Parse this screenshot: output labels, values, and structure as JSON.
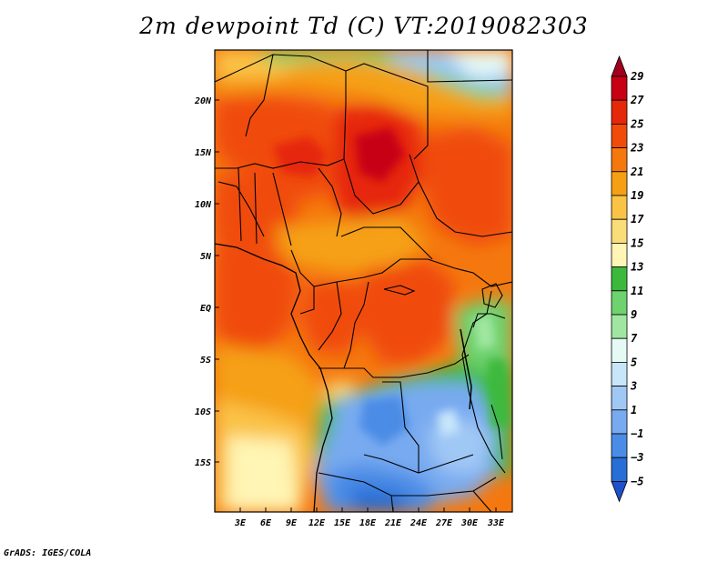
{
  "title": "2m dewpoint Td (C) VT:2019082303",
  "credit": "GrADS: IGES/COLA",
  "map": {
    "lat_labels": [
      "20N",
      "15N",
      "10N",
      "5N",
      "EQ",
      "5S",
      "10S",
      "15S"
    ],
    "lon_labels": [
      "3E",
      "6E",
      "9E",
      "12E",
      "15E",
      "18E",
      "21E",
      "24E",
      "27E",
      "30E",
      "33E"
    ]
  },
  "colorbar": {
    "labels": [
      "29",
      "27",
      "25",
      "23",
      "21",
      "19",
      "17",
      "15",
      "13",
      "11",
      "9",
      "7",
      "5",
      "3",
      "1",
      "−1",
      "−3",
      "−5"
    ],
    "colors": [
      "#a0001e",
      "#c80014",
      "#e6280a",
      "#f04b0a",
      "#f5780f",
      "#f5a014",
      "#fac346",
      "#fadc78",
      "#fff5b4",
      "#3cb93c",
      "#6ed26e",
      "#a0e6a0",
      "#e6faf5",
      "#c8e6fa",
      "#a0c8f5",
      "#78aaf0",
      "#4b8ce6",
      "#286ed7",
      "#1e50c8"
    ]
  }
}
